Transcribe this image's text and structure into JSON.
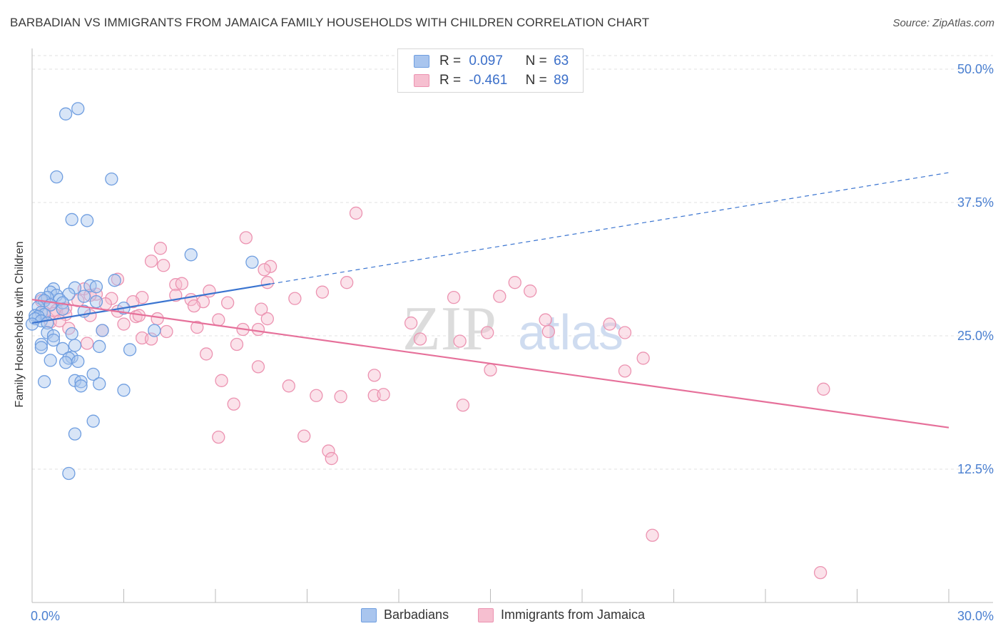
{
  "title": "BARBADIAN VS IMMIGRANTS FROM JAMAICA FAMILY HOUSEHOLDS WITH CHILDREN CORRELATION CHART",
  "source": "Source: ZipAtlas.com",
  "watermark": {
    "zip": "ZIP",
    "atlas": "atlas"
  },
  "legend_top": [
    {
      "r_label": "R =",
      "r_value": "0.097",
      "n_label": "N =",
      "n_value": "63"
    },
    {
      "r_label": "R =",
      "r_value": "-0.461",
      "n_label": "N =",
      "n_value": "89"
    }
  ],
  "legend_bottom": [
    {
      "label": "Barbadians"
    },
    {
      "label": "Immigrants from Jamaica"
    }
  ],
  "colors": {
    "blue_fill": "#a9c5ee",
    "blue_stroke": "#6f9ee0",
    "blue_line": "#3a74d0",
    "pink_fill": "#f6bfd0",
    "pink_stroke": "#ec93b1",
    "pink_line": "#e6709a",
    "tick_label": "#4a7fd0",
    "grid": "#e2e2e2"
  },
  "chart_data": {
    "type": "scatter",
    "title": "BARBADIAN VS IMMIGRANTS FROM JAMAICA FAMILY HOUSEHOLDS WITH CHILDREN CORRELATION CHART",
    "xlabel": "",
    "ylabel": "Family Households with Children",
    "xlim": [
      0,
      30
    ],
    "ylim": [
      0,
      50
    ],
    "x_tick_labels": [
      "0.0%",
      "30.0%"
    ],
    "y_ticks": [
      12.5,
      25.0,
      37.5,
      50.0
    ],
    "y_tick_labels": [
      "12.5%",
      "25.0%",
      "37.5%",
      "50.0%"
    ],
    "grid": true,
    "legend_position": "top-center",
    "series": [
      {
        "name": "Barbadians",
        "color": "#a9c5ee",
        "points": [
          [
            1.1,
            45.8
          ],
          [
            1.5,
            46.3
          ],
          [
            0.8,
            39.9
          ],
          [
            2.6,
            39.7
          ],
          [
            1.3,
            35.9
          ],
          [
            1.8,
            35.8
          ],
          [
            5.2,
            32.6
          ],
          [
            7.2,
            31.9
          ],
          [
            2.7,
            30.2
          ],
          [
            1.9,
            29.7
          ],
          [
            2.1,
            29.6
          ],
          [
            1.4,
            29.5
          ],
          [
            0.7,
            29.4
          ],
          [
            0.6,
            29.1
          ],
          [
            1.2,
            28.9
          ],
          [
            0.8,
            28.8
          ],
          [
            1.7,
            28.7
          ],
          [
            0.5,
            28.6
          ],
          [
            0.3,
            28.5
          ],
          [
            0.9,
            28.4
          ],
          [
            0.4,
            28.3
          ],
          [
            2.1,
            28.2
          ],
          [
            1.0,
            28.1
          ],
          [
            0.6,
            27.9
          ],
          [
            0.2,
            27.7
          ],
          [
            3.0,
            27.6
          ],
          [
            1.0,
            27.5
          ],
          [
            1.7,
            27.3
          ],
          [
            0.3,
            27.2
          ],
          [
            0.4,
            27.0
          ],
          [
            0.1,
            26.9
          ],
          [
            0.2,
            26.8
          ],
          [
            0.1,
            26.6
          ],
          [
            0.3,
            26.4
          ],
          [
            0.5,
            26.2
          ],
          [
            0.0,
            26.1
          ],
          [
            2.3,
            25.5
          ],
          [
            4.0,
            25.5
          ],
          [
            0.5,
            25.3
          ],
          [
            1.3,
            25.2
          ],
          [
            0.7,
            25.0
          ],
          [
            0.7,
            24.6
          ],
          [
            0.3,
            24.2
          ],
          [
            1.4,
            24.1
          ],
          [
            2.2,
            24.0
          ],
          [
            0.3,
            23.9
          ],
          [
            1.0,
            23.8
          ],
          [
            3.2,
            23.7
          ],
          [
            1.3,
            23.0
          ],
          [
            1.2,
            22.9
          ],
          [
            0.6,
            22.7
          ],
          [
            1.5,
            22.6
          ],
          [
            1.1,
            22.5
          ],
          [
            2.0,
            21.4
          ],
          [
            1.4,
            20.8
          ],
          [
            1.6,
            20.7
          ],
          [
            0.4,
            20.7
          ],
          [
            2.2,
            20.5
          ],
          [
            1.6,
            20.3
          ],
          [
            3.0,
            19.9
          ],
          [
            2.0,
            17.0
          ],
          [
            1.4,
            15.8
          ],
          [
            1.2,
            12.1
          ]
        ]
      },
      {
        "name": "Immigrants from Jamaica",
        "color": "#f6bfd0",
        "points": [
          [
            10.6,
            36.5
          ],
          [
            7.0,
            34.2
          ],
          [
            4.2,
            33.2
          ],
          [
            3.9,
            32.0
          ],
          [
            4.3,
            31.6
          ],
          [
            7.8,
            31.5
          ],
          [
            7.6,
            31.2
          ],
          [
            2.8,
            30.3
          ],
          [
            7.7,
            30.0
          ],
          [
            10.3,
            30.0
          ],
          [
            15.8,
            30.0
          ],
          [
            4.7,
            29.8
          ],
          [
            4.9,
            29.9
          ],
          [
            5.8,
            29.2
          ],
          [
            16.3,
            29.2
          ],
          [
            1.7,
            29.4
          ],
          [
            2.1,
            28.9
          ],
          [
            1.9,
            28.8
          ],
          [
            4.7,
            28.8
          ],
          [
            2.6,
            28.5
          ],
          [
            3.6,
            28.6
          ],
          [
            5.2,
            28.4
          ],
          [
            5.6,
            28.2
          ],
          [
            6.4,
            28.1
          ],
          [
            8.6,
            28.5
          ],
          [
            13.8,
            28.6
          ],
          [
            15.3,
            28.7
          ],
          [
            3.3,
            28.2
          ],
          [
            1.5,
            28.3
          ],
          [
            2.4,
            28.0
          ],
          [
            0.3,
            28.3
          ],
          [
            0.6,
            27.9
          ],
          [
            1.1,
            27.6
          ],
          [
            0.8,
            27.4
          ],
          [
            2.8,
            27.3
          ],
          [
            5.3,
            27.8
          ],
          [
            7.5,
            27.5
          ],
          [
            0.4,
            27.2
          ],
          [
            0.7,
            27.1
          ],
          [
            1.1,
            27.0
          ],
          [
            1.9,
            26.9
          ],
          [
            3.4,
            26.8
          ],
          [
            4.1,
            26.6
          ],
          [
            6.1,
            26.5
          ],
          [
            7.7,
            26.6
          ],
          [
            16.8,
            26.5
          ],
          [
            0.6,
            26.3
          ],
          [
            0.9,
            26.4
          ],
          [
            3.0,
            26.1
          ],
          [
            12.4,
            26.2
          ],
          [
            18.9,
            26.1
          ],
          [
            1.2,
            25.7
          ],
          [
            2.3,
            25.5
          ],
          [
            4.4,
            25.4
          ],
          [
            5.4,
            25.8
          ],
          [
            6.9,
            25.6
          ],
          [
            7.4,
            25.6
          ],
          [
            14.9,
            25.3
          ],
          [
            16.9,
            25.4
          ],
          [
            19.4,
            25.3
          ],
          [
            3.6,
            24.8
          ],
          [
            3.9,
            24.7
          ],
          [
            12.7,
            24.7
          ],
          [
            14.0,
            24.5
          ],
          [
            1.8,
            24.3
          ],
          [
            6.7,
            24.2
          ],
          [
            5.7,
            23.3
          ],
          [
            20.0,
            22.9
          ],
          [
            7.4,
            22.1
          ],
          [
            15.0,
            21.8
          ],
          [
            19.4,
            21.7
          ],
          [
            11.2,
            21.3
          ],
          [
            6.2,
            20.8
          ],
          [
            8.4,
            20.3
          ],
          [
            9.3,
            19.4
          ],
          [
            10.1,
            19.3
          ],
          [
            11.2,
            19.4
          ],
          [
            11.5,
            19.5
          ],
          [
            25.9,
            20.0
          ],
          [
            6.6,
            18.6
          ],
          [
            14.1,
            18.5
          ],
          [
            6.1,
            15.5
          ],
          [
            8.9,
            15.6
          ],
          [
            9.7,
            14.2
          ],
          [
            9.8,
            13.5
          ],
          [
            20.3,
            6.3
          ],
          [
            25.8,
            2.8
          ],
          [
            3.5,
            26.9
          ],
          [
            9.5,
            29.1
          ]
        ]
      }
    ],
    "trendlines": [
      {
        "series": "Barbadians",
        "x": [
          0,
          30
        ],
        "y": [
          26.2,
          40.3
        ],
        "solid_until_x": 7.8
      },
      {
        "series": "Immigrants from Jamaica",
        "x": [
          0,
          30
        ],
        "y": [
          28.4,
          16.4
        ]
      }
    ]
  }
}
